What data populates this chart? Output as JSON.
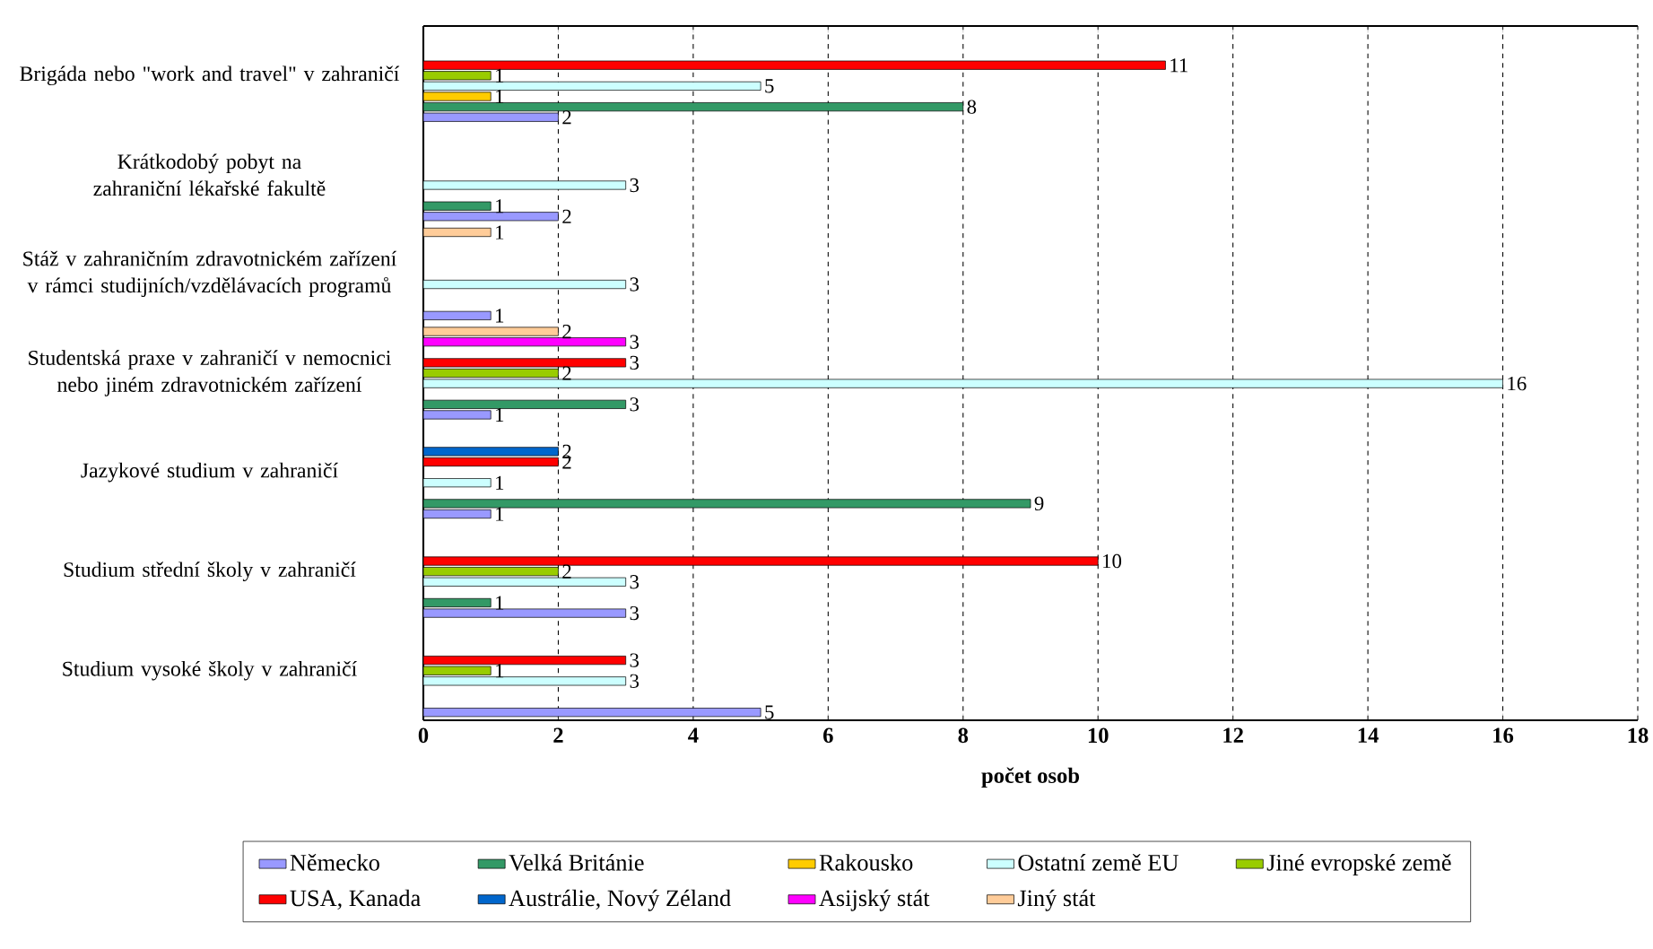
{
  "chart_data": {
    "type": "bar",
    "orientation": "horizontal",
    "xlabel": "počet osob",
    "categories": [
      "Brigáda nebo \"work and travel\" v zahraničí",
      "Krátkodobý pobyt na zahraniční lékařské fakultě",
      "Stáž v zahraničním zdravotnickém zařízení v rámci studijních/vzdělávacích programů",
      "Studentská praxe v zahraničí v nemocnici nebo jiném zdravotnickém zařízení",
      "Jazykové studium v zahraničí",
      "Studium střední školy v zahraničí",
      "Studium vysoké školy v zahraničí"
    ],
    "series": [
      {
        "name": "Německo",
        "color": "#9999ff",
        "values": [
          2,
          2,
          1,
          1,
          1,
          3,
          5
        ]
      },
      {
        "name": "Velká Británie",
        "color": "#339966",
        "values": [
          8,
          1,
          null,
          3,
          9,
          1,
          null
        ]
      },
      {
        "name": "Rakousko",
        "color": "#ffcc00",
        "values": [
          1,
          null,
          null,
          null,
          null,
          null,
          null
        ]
      },
      {
        "name": "Ostatní země EU",
        "color": "#ccffff",
        "values": [
          5,
          3,
          3,
          16,
          1,
          3,
          3
        ]
      },
      {
        "name": "Jiné evropské země",
        "color": "#99cc00",
        "values": [
          1,
          null,
          null,
          2,
          null,
          2,
          1
        ]
      },
      {
        "name": "USA, Kanada",
        "color": "#ff0000",
        "values": [
          11,
          null,
          null,
          3,
          2,
          10,
          3
        ]
      },
      {
        "name": "Austrálie, Nový Zéland",
        "color": "#0066cc",
        "values": [
          null,
          null,
          null,
          null,
          2,
          null,
          null
        ]
      },
      {
        "name": "Asijský stát",
        "color": "#ff00ff",
        "values": [
          null,
          null,
          null,
          3,
          null,
          null,
          null
        ]
      },
      {
        "name": "Jiný stát",
        "color": "#ffcc99",
        "values": [
          null,
          null,
          1,
          2,
          null,
          null,
          null
        ]
      }
    ],
    "xlim": [
      0,
      18
    ],
    "xticks": [
      0,
      2,
      4,
      6,
      8,
      10,
      12,
      14,
      16,
      18
    ],
    "grid": "x",
    "legend": "bottom",
    "data_labels": true
  }
}
